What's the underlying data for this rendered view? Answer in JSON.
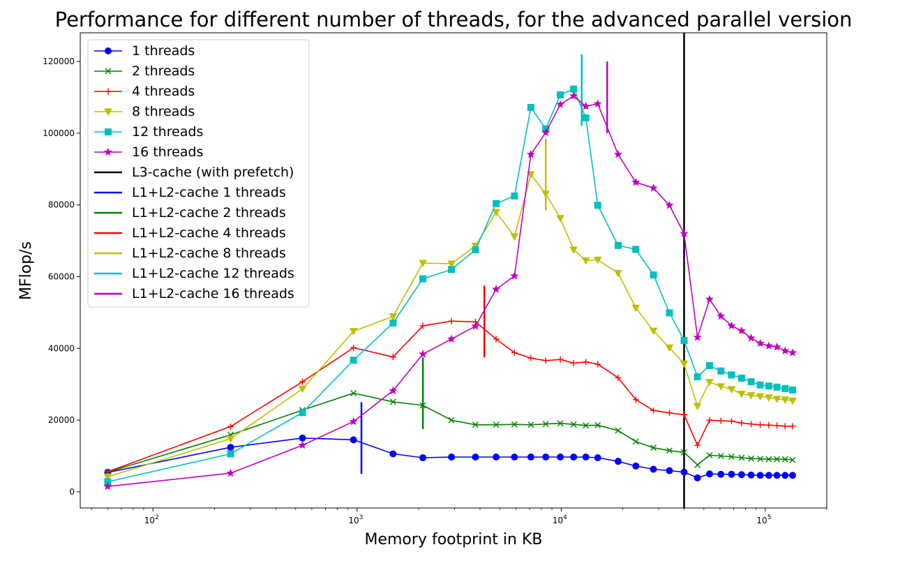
{
  "chart_data": {
    "type": "line",
    "title": "Performance for different number of threads, for the advanced parallel version",
    "xlabel": "Memory footprint in KB",
    "ylabel": "MFlop/s",
    "xscale": "log",
    "xlim": [
      44,
      200000
    ],
    "ylim": [
      -4500,
      128000
    ],
    "yticks": [
      0,
      20000,
      40000,
      60000,
      80000,
      100000,
      120000
    ],
    "ytick_labels": [
      "0",
      "20000",
      "40000",
      "60000",
      "80000",
      "100000",
      "120000"
    ],
    "xticks": [
      100,
      1000,
      10000,
      100000
    ],
    "xtick_labels": [
      {
        "base": "10",
        "exp": "2"
      },
      {
        "base": "10",
        "exp": "3"
      },
      {
        "base": "10",
        "exp": "4"
      },
      {
        "base": "10",
        "exp": "5"
      }
    ],
    "grid": false,
    "legend_position": "top-left",
    "x": [
      60,
      240,
      540,
      960,
      1500,
      2100,
      2900,
      3800,
      4800,
      5900,
      7100,
      8400,
      9900,
      11500,
      13200,
      15100,
      19000,
      23200,
      28300,
      33900,
      40000,
      46500,
      53300,
      60600,
      68300,
      76500,
      85200,
      94400,
      104000,
      114000,
      125000,
      136000
    ],
    "series": [
      {
        "name": "1 threads",
        "color": "#0000ff",
        "marker": "circle",
        "values": [
          5400,
          12400,
          15000,
          14500,
          10600,
          9500,
          9700,
          9700,
          9700,
          9700,
          9700,
          9700,
          9700,
          9700,
          9700,
          9500,
          8500,
          7200,
          6300,
          5900,
          5500,
          3900,
          5000,
          4900,
          4900,
          4800,
          4700,
          4600,
          4600,
          4600,
          4600,
          4600
        ]
      },
      {
        "name": "2 threads",
        "color": "#008000",
        "marker": "x",
        "values": [
          5500,
          15900,
          22800,
          27500,
          25100,
          24100,
          20000,
          18700,
          18700,
          18800,
          18700,
          18900,
          19100,
          18800,
          18500,
          18600,
          17100,
          14000,
          12300,
          11500,
          11000,
          7500,
          10200,
          10000,
          9800,
          9500,
          9300,
          9200,
          9100,
          9100,
          9100,
          8900
        ]
      },
      {
        "name": "4 threads",
        "color": "#ff0000",
        "marker": "plus",
        "values": [
          5600,
          18200,
          30700,
          40200,
          37600,
          46300,
          47600,
          47400,
          42600,
          38800,
          37300,
          36600,
          36900,
          35900,
          36200,
          35600,
          31800,
          25700,
          22700,
          22000,
          21500,
          13000,
          20000,
          19800,
          19700,
          19200,
          18900,
          18700,
          18600,
          18500,
          18300,
          18300
        ]
      },
      {
        "name": "8 threads",
        "color": "#bfbf00",
        "marker": "triangle-down",
        "values": [
          4200,
          14800,
          28700,
          44800,
          48900,
          63800,
          63600,
          68600,
          78000,
          71200,
          88500,
          83100,
          76300,
          67500,
          64500,
          64700,
          61000,
          51300,
          44900,
          40200,
          35700,
          23900,
          30600,
          29400,
          28600,
          27300,
          26900,
          26600,
          26300,
          25900,
          25700,
          25400
        ]
      },
      {
        "name": "12 threads",
        "color": "#00bfbf",
        "marker": "square",
        "values": [
          2800,
          10600,
          22100,
          36700,
          47100,
          59400,
          62000,
          67500,
          80400,
          82500,
          107200,
          101200,
          110700,
          112300,
          104300,
          79900,
          68700,
          67600,
          60500,
          49900,
          42200,
          32100,
          35200,
          33700,
          32600,
          31700,
          30700,
          29800,
          29500,
          29200,
          28800,
          28400
        ]
      },
      {
        "name": "16 threads",
        "color": "#bf00bf",
        "marker": "star",
        "values": [
          1500,
          5200,
          13000,
          19600,
          28200,
          38400,
          42600,
          46200,
          56500,
          60200,
          94100,
          100200,
          108000,
          110400,
          107500,
          108200,
          94100,
          86300,
          84700,
          79900,
          72000,
          43100,
          53700,
          49000,
          46300,
          44900,
          42900,
          41400,
          40700,
          40400,
          39300,
          38800
        ]
      }
    ],
    "reference_lines": [
      {
        "name": "L3-cache (with prefetch)",
        "color": "#000000",
        "x": 40000,
        "full_height": true
      },
      {
        "name": "L1+L2-cache 1 threads",
        "color": "#0000ff",
        "x": 1050,
        "y_range": [
          5000,
          25000
        ]
      },
      {
        "name": "L1+L2-cache 2 threads",
        "color": "#008000",
        "x": 2100,
        "y_range": [
          17500,
          37500
        ]
      },
      {
        "name": "L1+L2-cache 4 threads",
        "color": "#ff0000",
        "x": 4200,
        "y_range": [
          37500,
          57500
        ]
      },
      {
        "name": "L1+L2-cache 8 threads",
        "color": "#bfbf00",
        "x": 8400,
        "y_range": [
          78500,
          98500
        ]
      },
      {
        "name": "L1+L2-cache 12 threads",
        "color": "#00bfbf",
        "x": 12600,
        "y_range": [
          102000,
          122000
        ]
      },
      {
        "name": "L1+L2-cache 16 threads",
        "color": "#bf00bf",
        "x": 16800,
        "y_range": [
          100000,
          120000
        ]
      }
    ]
  }
}
